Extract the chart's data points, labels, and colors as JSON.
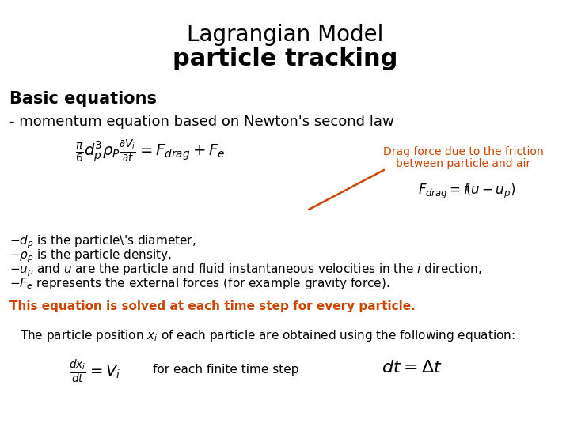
{
  "title_line1": "Lagrangian Model",
  "title_line2": "particle tracking",
  "background_color": "#ffffff",
  "title_color": "#000000",
  "title_fontsize": 20,
  "section_header": "Basic equations",
  "section_header_fontsize": 15,
  "subtitle": "- momentum equation based on Newton's second law",
  "subtitle_fontsize": 13,
  "drag_label_color": "#cc4400",
  "drag_label_text_line1": "Drag force due to the friction",
  "drag_label_text_line2": "between particle and air",
  "orange_bold_text": "This equation is solved at each time step for every particle.",
  "orange_color": "#cc4400",
  "finite_step_text": "for each finite time step",
  "bullet_fontsize": 11,
  "arrow_color": "#cc4400"
}
